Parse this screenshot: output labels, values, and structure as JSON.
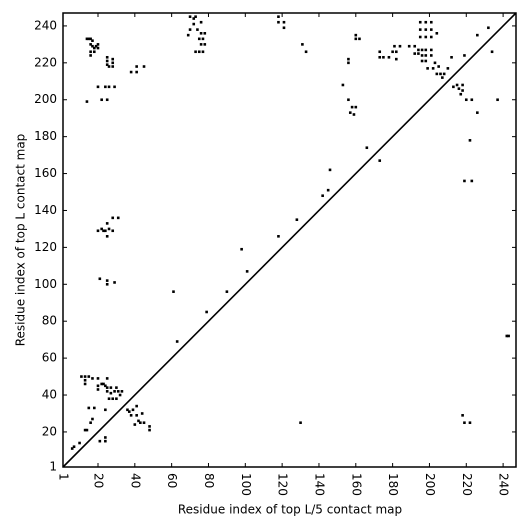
{
  "chart_data": {
    "type": "scatter",
    "xlabel": "Residue index of top L/5 contact map",
    "ylabel": "Residue index of top L contact map",
    "xlim": [
      1,
      247
    ],
    "ylim": [
      1,
      247
    ],
    "xticks": [
      1,
      20,
      40,
      60,
      80,
      100,
      120,
      140,
      160,
      180,
      200,
      220,
      240
    ],
    "yticks": [
      1,
      20,
      40,
      60,
      80,
      100,
      120,
      140,
      160,
      180,
      200,
      220,
      240
    ],
    "diagonal": true,
    "color": "#000000",
    "x": [
      14,
      15,
      16,
      17,
      16,
      17,
      18,
      19,
      16,
      16,
      18,
      20,
      20,
      25,
      25,
      25,
      26,
      28,
      28,
      28,
      24,
      26,
      29,
      20,
      22,
      25,
      14,
      38,
      41,
      41,
      45,
      70,
      72,
      73,
      72,
      74,
      76,
      76,
      78,
      77,
      75,
      78,
      76,
      73,
      75,
      77,
      70,
      69,
      118,
      118,
      121,
      121,
      131,
      133,
      160,
      160,
      162,
      156,
      156,
      153,
      156,
      158,
      160,
      159,
      157,
      173,
      173,
      175,
      178,
      180,
      182,
      181,
      184,
      182,
      195,
      198,
      201,
      195,
      198,
      201,
      204,
      195,
      198,
      201,
      189,
      192,
      194,
      196,
      198,
      201,
      192,
      194,
      196,
      198,
      201,
      196,
      198,
      203,
      205,
      199,
      202,
      204,
      206,
      208,
      210,
      207,
      212,
      213,
      215,
      218,
      218,
      217,
      216,
      220,
      223,
      226,
      219,
      226,
      232,
      234,
      237,
      222,
      219,
      223,
      218,
      219,
      222,
      130,
      242,
      243,
      166,
      173,
      146,
      142,
      145,
      128,
      98,
      101,
      61,
      90,
      79,
      63,
      118,
      20,
      22,
      24,
      26,
      28,
      25,
      25,
      28,
      31,
      23,
      21,
      25,
      25,
      29,
      11,
      13,
      15,
      13,
      13,
      17,
      20,
      22,
      20,
      25,
      23,
      25,
      25,
      27,
      27,
      28,
      29,
      30,
      31,
      32,
      33,
      24,
      26,
      30,
      20,
      15,
      18,
      24,
      17,
      13,
      14,
      16,
      24,
      24,
      21,
      36,
      39,
      41,
      38,
      41,
      44,
      42,
      43,
      45,
      48,
      48,
      40,
      37,
      6,
      7,
      10
    ],
    "y": [
      233,
      233,
      233,
      232,
      230,
      229,
      228,
      229,
      226,
      224,
      226,
      230,
      228,
      223,
      221,
      219,
      218,
      222,
      220,
      218,
      207,
      207,
      207,
      207,
      200,
      200,
      199,
      215,
      215,
      218,
      218,
      245,
      244,
      245,
      241,
      238,
      242,
      236,
      236,
      233,
      233,
      230,
      230,
      226,
      226,
      226,
      238,
      235,
      245,
      242,
      242,
      239,
      230,
      226,
      235,
      233,
      233,
      222,
      220,
      208,
      200,
      196,
      196,
      192,
      193,
      226,
      223,
      223,
      223,
      226,
      226,
      229,
      229,
      222,
      242,
      242,
      242,
      238,
      238,
      238,
      236,
      234,
      234,
      234,
      229,
      229,
      227,
      227,
      227,
      227,
      225,
      225,
      224,
      224,
      224,
      221,
      221,
      220,
      218,
      217,
      217,
      214,
      214,
      214,
      217,
      212,
      223,
      207,
      208,
      208,
      205,
      203,
      206,
      200,
      200,
      193,
      224,
      235,
      239,
      226,
      200,
      178,
      156,
      156,
      29,
      25,
      25,
      25,
      72,
      72,
      174,
      167,
      162,
      148,
      151,
      135,
      119,
      107,
      96,
      96,
      85,
      69,
      126,
      129,
      130,
      129,
      130,
      129,
      126,
      133,
      136,
      136,
      129,
      103,
      102,
      100,
      101,
      50,
      50,
      50,
      48,
      46,
      49,
      49,
      46,
      45,
      49,
      46,
      44,
      42,
      44,
      41,
      38,
      42,
      44,
      42,
      40,
      42,
      45,
      38,
      38,
      43,
      33,
      33,
      32,
      27,
      21,
      21,
      25,
      17,
      15,
      15,
      32,
      32,
      34,
      29,
      29,
      30,
      26,
      25,
      25,
      23,
      21,
      24,
      31,
      11,
      12,
      14
    ]
  }
}
